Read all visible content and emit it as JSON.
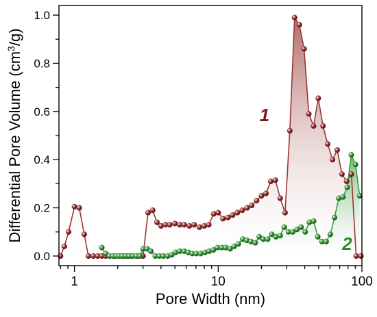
{
  "chart_data": {
    "type": "line",
    "xlabel": "Pore Width (nm)",
    "ylabel": "Differential Pore Volume (cm³/g)",
    "xscale": "log",
    "xlim": [
      0.78,
      100
    ],
    "ylim": [
      -0.04,
      1.04
    ],
    "x_ticks": [
      1,
      10,
      100
    ],
    "x_tick_labels": [
      "1",
      "10",
      "100"
    ],
    "y_ticks": [
      0.0,
      0.2,
      0.4,
      0.6,
      0.8,
      1.0
    ],
    "y_tick_labels": [
      "0.0",
      "0.2",
      "0.4",
      "0.6",
      "0.8",
      "1.0"
    ],
    "grid": false,
    "legend": "none",
    "series": [
      {
        "name": "1",
        "color": "#9a3535",
        "fill_top": "#a55050",
        "x": [
          0.8,
          0.85,
          0.91,
          1.0,
          1.08,
          1.17,
          1.25,
          1.35,
          1.45,
          1.55,
          1.65,
          1.75,
          1.9,
          2.05,
          2.2,
          2.35,
          2.5,
          2.75,
          3.0,
          3.25,
          3.5,
          3.75,
          4.0,
          4.3,
          4.6,
          5.0,
          5.4,
          5.8,
          6.3,
          6.8,
          7.4,
          8.0,
          8.6,
          9.3,
          10.0,
          10.8,
          11.7,
          12.6,
          13.6,
          14.7,
          15.9,
          17.1,
          18.5,
          20.0,
          21.5,
          23.2,
          25.0,
          27.0,
          29.2,
          31.5,
          34.0,
          36.7,
          39.6,
          42.7,
          46.1,
          49.7,
          53.6,
          57.8,
          62.4,
          67.3,
          72.6,
          78.3,
          84.5,
          91.2,
          98.4
        ],
        "y": [
          0.0,
          0.04,
          0.1,
          0.205,
          0.2,
          0.09,
          0.0,
          0.0,
          0.0,
          0.0,
          0.0,
          0.0,
          0.0,
          0.0,
          0.0,
          0.0,
          0.0,
          0.0,
          0.0,
          0.18,
          0.19,
          0.14,
          0.125,
          0.13,
          0.13,
          0.135,
          0.13,
          0.13,
          0.125,
          0.13,
          0.12,
          0.125,
          0.13,
          0.175,
          0.18,
          0.155,
          0.16,
          0.17,
          0.18,
          0.19,
          0.2,
          0.21,
          0.23,
          0.25,
          0.26,
          0.31,
          0.315,
          0.24,
          0.18,
          0.52,
          0.99,
          0.96,
          0.86,
          0.59,
          0.54,
          0.655,
          0.54,
          0.465,
          0.4,
          0.44,
          0.34,
          0.31,
          0.34,
          0.0,
          0.0
        ]
      },
      {
        "name": "2",
        "color": "#3a9a3e",
        "fill_top": "#5ab05c",
        "x": [
          1.55,
          1.65,
          1.75,
          1.85,
          1.95,
          2.05,
          2.15,
          2.27,
          2.4,
          2.55,
          2.7,
          2.85,
          3.0,
          3.2,
          3.4,
          3.65,
          3.9,
          4.15,
          4.45,
          4.75,
          5.05,
          5.4,
          5.8,
          6.2,
          6.6,
          7.05,
          7.55,
          8.1,
          8.65,
          9.25,
          9.9,
          10.6,
          11.3,
          12.1,
          12.9,
          13.8,
          14.8,
          15.8,
          16.9,
          18.1,
          19.3,
          20.6,
          22.1,
          23.6,
          25.2,
          27.0,
          28.8,
          30.8,
          33.0,
          35.3,
          37.7,
          40.3,
          43.1,
          46.1,
          49.3,
          52.7,
          56.4,
          60.3,
          64.5,
          69.0,
          73.8,
          78.9,
          84.4,
          90.2,
          96.5
        ],
        "y": [
          0.035,
          0.01,
          0.0,
          0.0,
          0.0,
          0.0,
          0.0,
          0.0,
          0.0,
          0.0,
          0.0,
          0.0,
          0.03,
          0.03,
          0.02,
          0.0,
          0.0,
          0.0,
          0.0,
          0.005,
          0.015,
          0.02,
          0.02,
          0.015,
          0.01,
          0.01,
          0.01,
          0.015,
          0.02,
          0.025,
          0.035,
          0.035,
          0.035,
          0.03,
          0.04,
          0.05,
          0.07,
          0.065,
          0.06,
          0.055,
          0.08,
          0.07,
          0.07,
          0.09,
          0.08,
          0.085,
          0.12,
          0.1,
          0.1,
          0.11,
          0.12,
          0.1,
          0.14,
          0.145,
          0.08,
          0.06,
          0.06,
          0.09,
          0.16,
          0.24,
          0.245,
          0.285,
          0.42,
          0.38,
          0.25
        ]
      }
    ],
    "annotations": [
      {
        "text": "1",
        "x": 21.0,
        "y": 0.56,
        "color": "#7a1a1a"
      },
      {
        "text": "2",
        "x": 79.0,
        "y": 0.025,
        "color": "#2a8a2a"
      }
    ]
  }
}
